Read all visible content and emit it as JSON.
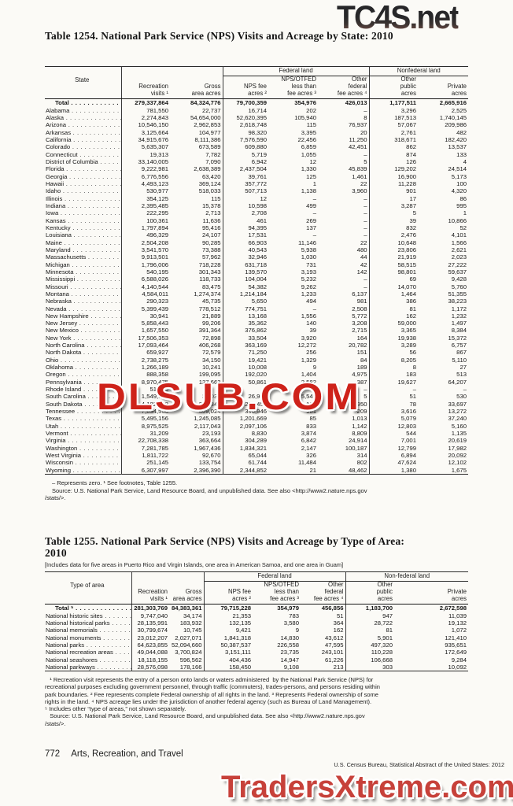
{
  "watermarks": {
    "top": "TC4S.net",
    "middle": "DLSUB.COM",
    "bottom": "TradersXtreme.com",
    "red_color": "#ce221a",
    "dark_color": "#2e2e30"
  },
  "table1254": {
    "title": "Table 1254. National Park Service (NPS) Visits and Acreage by State: 2010",
    "col1_header": "State",
    "group_federal": "Federal land",
    "group_nonfederal": "Nonfederal land",
    "headers": {
      "recreation_visits": "Recreation\nvisits ¹",
      "gross_area": "Gross\narea acres",
      "nps_fee": "NPS fee\nacres ²",
      "nps_otfed": "NPS/OTFED\nless than\nfee acres ³",
      "other_federal": "Other\nfederal\nfee acres ⁴",
      "other_public": "Other\npublic\nacres",
      "private": "Private\nacres"
    },
    "rows": [
      {
        "label": "Total",
        "bold": true,
        "values": [
          "279,337,864",
          "84,324,776",
          "79,700,359",
          "354,976",
          "426,013",
          "1,177,511",
          "2,665,916"
        ]
      },
      {
        "label": "Alabama",
        "values": [
          "781,550",
          "22,737",
          "16,714",
          "202",
          "–",
          "3,296",
          "2,525"
        ]
      },
      {
        "label": "Alaska",
        "values": [
          "2,274,843",
          "54,654,000",
          "52,620,395",
          "105,940",
          "8",
          "187,513",
          "1,740,145"
        ]
      },
      {
        "label": "Arizona",
        "values": [
          "10,546,150",
          "2,962,853",
          "2,618,748",
          "115",
          "76,937",
          "57,067",
          "209,986"
        ]
      },
      {
        "label": "Arkansas",
        "values": [
          "3,125,664",
          "104,977",
          "98,320",
          "3,395",
          "20",
          "2,761",
          "482"
        ]
      },
      {
        "label": "California",
        "values": [
          "34,915,676",
          "8,111,386",
          "7,576,590",
          "22,456",
          "11,250",
          "318,671",
          "182,420"
        ]
      },
      {
        "label": "Colorado",
        "values": [
          "5,635,307",
          "673,589",
          "609,880",
          "6,859",
          "42,451",
          "862",
          "13,537"
        ]
      },
      {
        "label": "Connecticut",
        "values": [
          "19,313",
          "7,782",
          "5,719",
          "1,055",
          "–",
          "874",
          "133"
        ]
      },
      {
        "label": "District of Columbia",
        "values": [
          "33,140,005",
          "7,090",
          "6,942",
          "12",
          "5",
          "126",
          "4"
        ]
      },
      {
        "label": "Florida",
        "values": [
          "9,222,981",
          "2,638,389",
          "2,437,504",
          "1,330",
          "45,839",
          "129,202",
          "24,514"
        ]
      },
      {
        "label": "Georgia",
        "values": [
          "6,776,556",
          "63,420",
          "39,761",
          "125",
          "1,461",
          "16,900",
          "5,173"
        ]
      },
      {
        "label": "Hawaii",
        "values": [
          "4,493,123",
          "369,124",
          "357,772",
          "1",
          "22",
          "11,228",
          "100"
        ]
      },
      {
        "label": "Idaho",
        "values": [
          "530,977",
          "518,033",
          "507,713",
          "1,138",
          "3,960",
          "901",
          "4,320"
        ]
      },
      {
        "label": "Illinois",
        "values": [
          "354,125",
          "115",
          "12",
          "–",
          "–",
          "17",
          "86"
        ]
      },
      {
        "label": "Indiana",
        "values": [
          "2,395,485",
          "15,378",
          "10,598",
          "499",
          "–",
          "3,287",
          "995"
        ]
      },
      {
        "label": "Iowa",
        "values": [
          "222,295",
          "2,713",
          "2,708",
          "–",
          "–",
          "5",
          "1"
        ]
      },
      {
        "label": "Kansas",
        "values": [
          "100,361",
          "11,636",
          "461",
          "269",
          "–",
          "39",
          "10,866"
        ]
      },
      {
        "label": "Kentucky",
        "values": [
          "1,797,894",
          "95,416",
          "94,395",
          "137",
          "–",
          "832",
          "52"
        ]
      },
      {
        "label": "Louisiana",
        "values": [
          "496,329",
          "24,107",
          "17,531",
          "–",
          "–",
          "2,476",
          "4,101"
        ]
      },
      {
        "label": "Maine",
        "values": [
          "2,504,208",
          "90,285",
          "66,903",
          "11,146",
          "22",
          "10,648",
          "1,566"
        ]
      },
      {
        "label": "Maryland",
        "values": [
          "3,541,570",
          "73,388",
          "40,543",
          "5,938",
          "480",
          "23,806",
          "2,621"
        ]
      },
      {
        "label": "Massachusetts",
        "values": [
          "9,913,501",
          "57,962",
          "32,946",
          "1,030",
          "44",
          "21,919",
          "2,023"
        ]
      },
      {
        "label": "Michigan",
        "values": [
          "1,796,006",
          "718,228",
          "631,718",
          "731",
          "42",
          "58,515",
          "27,222"
        ]
      },
      {
        "label": "Minnesota",
        "values": [
          "540,195",
          "301,343",
          "139,570",
          "3,193",
          "142",
          "98,801",
          "59,637"
        ]
      },
      {
        "label": "Mississippi",
        "values": [
          "6,588,026",
          "118,733",
          "104,004",
          "5,232",
          "–",
          "69",
          "9,428"
        ]
      },
      {
        "label": "Missouri",
        "values": [
          "4,140,544",
          "83,475",
          "54,382",
          "9,262",
          "–",
          "14,070",
          "5,760"
        ]
      },
      {
        "label": "Montana",
        "values": [
          "4,584,011",
          "1,274,374",
          "1,214,184",
          "1,233",
          "6,137",
          "1,464",
          "51,355"
        ]
      },
      {
        "label": "Nebraska",
        "values": [
          "290,323",
          "45,735",
          "5,650",
          "494",
          "981",
          "386",
          "38,223"
        ]
      },
      {
        "label": "Nevada",
        "values": [
          "5,399,439",
          "778,512",
          "774,751",
          "–",
          "2,508",
          "81",
          "1,172"
        ]
      },
      {
        "label": "New Hampshire",
        "values": [
          "30,941",
          "21,889",
          "13,168",
          "1,556",
          "5,772",
          "162",
          "1,232"
        ]
      },
      {
        "label": "New Jersey",
        "values": [
          "5,858,443",
          "99,206",
          "35,362",
          "140",
          "3,208",
          "59,000",
          "1,497"
        ]
      },
      {
        "label": "New Mexico",
        "values": [
          "1,657,550",
          "391,364",
          "376,862",
          "39",
          "2,715",
          "3,365",
          "8,384"
        ]
      },
      {
        "label": "New York",
        "values": [
          "17,506,353",
          "72,898",
          "33,504",
          "3,920",
          "164",
          "19,938",
          "15,372"
        ]
      },
      {
        "label": "North Carolina",
        "values": [
          "17,093,464",
          "406,268",
          "363,169",
          "12,272",
          "20,782",
          "3,289",
          "6,757"
        ]
      },
      {
        "label": "North Dakota",
        "values": [
          "659,927",
          "72,579",
          "71,250",
          "256",
          "151",
          "56",
          "867"
        ]
      },
      {
        "label": "Ohio",
        "values": [
          "2,738,275",
          "34,150",
          "19,421",
          "1,329",
          "84",
          "8,205",
          "5,110"
        ]
      },
      {
        "label": "Oklahoma",
        "values": [
          "1,266,189",
          "10,241",
          "10,008",
          "9",
          "189",
          "8",
          "27"
        ]
      },
      {
        "label": "Oregon",
        "values": [
          "888,358",
          "199,095",
          "192,020",
          "1,404",
          "4,975",
          "183",
          "513"
        ]
      },
      {
        "label": "Pennsylvania",
        "values": [
          "8,970,475",
          "137,663",
          "50,861",
          "2,582",
          "387",
          "19,627",
          "64,207"
        ]
      },
      {
        "label": "Rhode Island",
        "values": [
          "51,555",
          "5",
          "5",
          "–",
          "–",
          "–",
          "–"
        ]
      },
      {
        "label": "South Carolina",
        "values": [
          "1,549,801",
          "33,035",
          "26,900",
          "5,549",
          "5",
          "51",
          "530"
        ]
      },
      {
        "label": "South Dakota",
        "values": [
          "4,182,643",
          "273,344",
          "238,453",
          "166",
          "950",
          "78",
          "33,697"
        ]
      },
      {
        "label": "Tennessee",
        "values": [
          "7,894,556",
          "409,024",
          "390,946",
          "981",
          "209",
          "3,616",
          "13,272"
        ]
      },
      {
        "label": "Texas",
        "values": [
          "5,495,156",
          "1,245,085",
          "1,201,669",
          "85",
          "1,013",
          "5,079",
          "37,240"
        ]
      },
      {
        "label": "Utah",
        "values": [
          "8,975,525",
          "2,117,043",
          "2,097,106",
          "833",
          "1,142",
          "12,803",
          "5,160"
        ]
      },
      {
        "label": "Vermont",
        "values": [
          "31,209",
          "23,193",
          "8,830",
          "3,874",
          "8,809",
          "544",
          "1,135"
        ]
      },
      {
        "label": "Virginia",
        "values": [
          "22,708,338",
          "363,664",
          "304,289",
          "6,842",
          "24,914",
          "7,001",
          "20,619"
        ]
      },
      {
        "label": "Washington",
        "values": [
          "7,281,785",
          "1,967,436",
          "1,834,321",
          "2,147",
          "100,187",
          "12,799",
          "17,982"
        ]
      },
      {
        "label": "West Virginia",
        "values": [
          "1,811,722",
          "92,670",
          "65,044",
          "326",
          "314",
          "6,894",
          "20,092"
        ]
      },
      {
        "label": "Wisconsin",
        "values": [
          "251,145",
          "133,754",
          "61,744",
          "11,484",
          "802",
          "47,624",
          "12,102"
        ]
      },
      {
        "label": "Wyoming",
        "values": [
          "6,307,997",
          "2,396,390",
          "2,344,852",
          "21",
          "48,462",
          "1,380",
          "1,675"
        ]
      }
    ],
    "footnote_line1": "– Represents zero. ¹ See footnotes, Table 1255.",
    "footnote_line2": "Source: U.S. National Park Service, Land Resource Board, and unpublished data. See also <http://www2.nature.nps.gov",
    "footnote_line3": "/stats/>."
  },
  "table1255": {
    "title": "Table 1255. National Park Service (NPS) Visits and Acreage by Type of Area:\n2010",
    "bracket_note": "[Includes data for five areas in Puerto Rico and Virgin Islands, one area in American Samoa, and one area in Guam]",
    "col1_header": "Type of area",
    "group_federal": "Federal land",
    "group_nonfederal": "Non-federal land",
    "headers": {
      "recreation_visits": "Recreation\nvisits ¹",
      "gross_area": "Gross\narea acres",
      "nps_fee": "NPS fee\nacres ²",
      "nps_otfed": "NPS/OTFED\nless than\nfee acres ³",
      "other_federal": "Other\nfederal\nfee acres ⁴",
      "other_public": "Other\npublic\nacres",
      "private": "Private\nacres"
    },
    "rows": [
      {
        "label": "Total ⁵",
        "bold": true,
        "values": [
          "281,303,769",
          "84,383,361",
          "79,715,228",
          "354,979",
          "456,856",
          "1,183,700",
          "2,672,598"
        ]
      },
      {
        "label": "National historic sites",
        "values": [
          "9,747,040",
          "34,174",
          "21,353",
          "783",
          "51",
          "947",
          "11,039"
        ]
      },
      {
        "label": "National historical parks",
        "values": [
          "28,135,991",
          "183,932",
          "132,135",
          "3,580",
          "364",
          "28,722",
          "19,132"
        ]
      },
      {
        "label": "National memorials",
        "values": [
          "30,799,674",
          "10,745",
          "9,421",
          "9",
          "162",
          "81",
          "1,072"
        ]
      },
      {
        "label": "National monuments",
        "values": [
          "23,012,207",
          "2,027,071",
          "1,841,318",
          "14,830",
          "43,612",
          "5,901",
          "121,410"
        ]
      },
      {
        "label": "National parks",
        "values": [
          "64,623,855",
          "52,094,660",
          "50,387,537",
          "226,558",
          "47,595",
          "497,320",
          "935,651"
        ]
      },
      {
        "label": "National recreation areas",
        "values": [
          "49,044,088",
          "3,700,824",
          "3,151,111",
          "23,735",
          "243,101",
          "110,228",
          "172,649"
        ]
      },
      {
        "label": "National seashores",
        "values": [
          "18,118,155",
          "596,562",
          "404,436",
          "14,947",
          "61,226",
          "106,668",
          "9,284"
        ]
      },
      {
        "label": "National parkways",
        "values": [
          "28,576,098",
          "178,166",
          "158,450",
          "9,108",
          "213",
          "303",
          "10,092"
        ]
      }
    ],
    "footnotes": "   ¹ Recreation visit represents the entry of a person onto lands or waters administered  by the National Park Service (NPS) for\nrecreational purposes excluding government personnel, through traffic (commuters), trades-persons, and persons residing within\npark boundaries. ² Fee represents complete Federal ownership of all rights in the land. ³ Represents Federal ownership of some\nrights in the land. ⁴ NPS acreage lies under the jurisdiction of another federal agency (such as Bureau of Land Management).\n⁵ Includes other “type of areas,” not shown separately.\n   Source: U.S. National Park Service, Land Resource Board, and unpublished data. See also <http://www2.nature.nps.gov\n/stats/>."
  },
  "page_footer": {
    "page_number": "772",
    "section_title": "Arts, Recreation, and Travel",
    "source": "U.S. Census Bureau, Statistical Abstract of the United States: 2012"
  }
}
